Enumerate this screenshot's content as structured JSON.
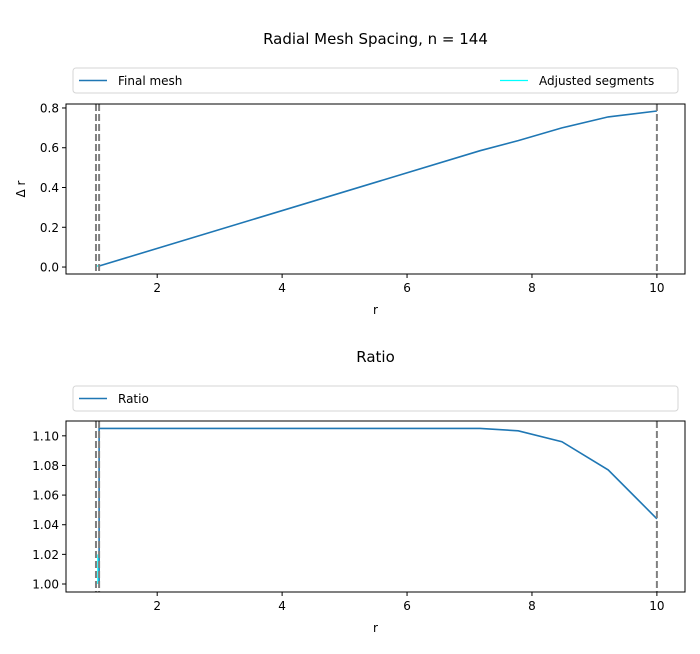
{
  "chart_data": [
    {
      "type": "line",
      "title": "Radial Mesh Spacing, n = 144",
      "xlabel": "r",
      "ylabel": "Δ r",
      "xlim": [
        0.54,
        10.45
      ],
      "ylim": [
        -0.035,
        0.82
      ],
      "xticks": [
        2,
        4,
        6,
        8,
        10
      ],
      "yticks": [
        0.0,
        0.2,
        0.4,
        0.6,
        0.8
      ],
      "ytick_labels": [
        "0.0",
        "0.2",
        "0.4",
        "0.6",
        "0.8"
      ],
      "grid": false,
      "legend_placement": "top (above axes, expanded)",
      "series": [
        {
          "name": "Final mesh",
          "color": "#1f77b4",
          "x": [
            1.07,
            7.17,
            7.78,
            8.48,
            9.22,
            10.0
          ],
          "y": [
            0.005,
            0.585,
            0.636,
            0.7,
            0.755,
            0.785
          ]
        },
        {
          "name": "Adjusted segments",
          "color": "#00ffff",
          "x": [
            1.02,
            1.07
          ],
          "y": [
            0.005,
            0.005
          ]
        }
      ],
      "vlines": {
        "x": [
          1.02,
          1.07,
          10.0
        ],
        "color": "#808080",
        "style": "dashed"
      }
    },
    {
      "type": "line",
      "title": "Ratio",
      "xlabel": "r",
      "ylabel": "",
      "xlim": [
        0.54,
        10.45
      ],
      "ylim": [
        0.9946,
        1.11
      ],
      "xticks": [
        2,
        4,
        6,
        8,
        10
      ],
      "yticks": [
        1.0,
        1.02,
        1.04,
        1.06,
        1.08,
        1.1
      ],
      "ytick_labels": [
        "1.00",
        "1.02",
        "1.04",
        "1.06",
        "1.08",
        "1.10"
      ],
      "grid": false,
      "legend_placement": "top (above axes, expanded)",
      "series": [
        {
          "name": "Ratio",
          "color": "#1f77b4",
          "x": [
            1.07,
            1.07,
            7.17,
            7.78,
            8.48,
            9.22,
            10.0
          ],
          "y": [
            1.0,
            1.105,
            1.105,
            1.1034,
            1.096,
            1.077,
            1.044
          ]
        },
        {
          "name": "",
          "color": "#00ffff",
          "x": [
            1.05,
            1.05
          ],
          "y": [
            1.0,
            1.02
          ]
        }
      ],
      "vlines": {
        "x": [
          1.02,
          1.07,
          10.0
        ],
        "color": "#808080",
        "style": "dashed"
      }
    }
  ]
}
